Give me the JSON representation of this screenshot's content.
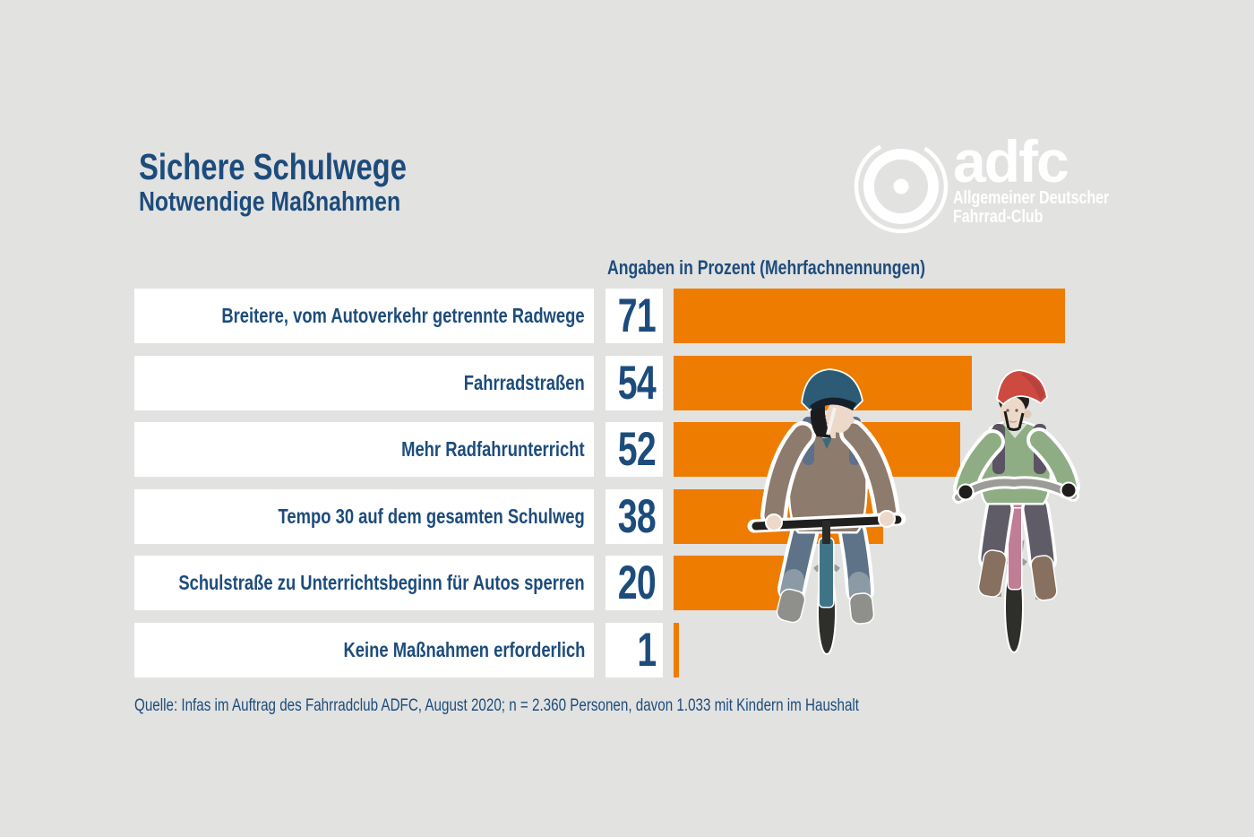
{
  "title": "Sichere Schulwege",
  "subtitle": "Notwendige Maßnahmen",
  "logo": {
    "brand": "adfc",
    "line1": "Allgemeiner Deutscher",
    "line2": "Fahrrad-Club",
    "wheel_icon": "bicycle-wheel"
  },
  "chart_header": "Angaben in Prozent (Mehrfachnennungen)",
  "chart_data": {
    "type": "bar",
    "orientation": "horizontal",
    "unit": "percent",
    "title": "Sichere Schulwege – Notwendige Maßnahmen",
    "xlabel": "Angaben in Prozent (Mehrfachnennungen)",
    "xlim": [
      0,
      100
    ],
    "categories": [
      "Breitere, vom Autoverkehr getrennte Radwege",
      "Fahrradstraßen",
      "Mehr Radfahrunterricht",
      "Tempo 30 auf dem gesamten Schulweg",
      "Schulstraße zu Unterrichtsbeginn für Autos sperren",
      "Keine Maßnahmen erforderlich"
    ],
    "values": [
      71,
      54,
      52,
      38,
      20,
      1
    ],
    "bar_color": "#EE7C00",
    "grid": false,
    "legend": false
  },
  "source": "Quelle: Infas im Auftrag des Fahrradclub ADFC, August 2020; n = 2.360 Personen, davon 1.033 mit Kindern im Haushalt",
  "colors": {
    "background": "#E2E2E1",
    "accent_orange": "#EE7C00",
    "text_blue": "#1D4C7C",
    "box_white": "#FFFFFF",
    "logo_white": "#FFFFFF"
  },
  "illustration": {
    "name": "two-children-riding-bikes",
    "left_child": {
      "helmet": "#2D5A74",
      "sweater": "#8D7B6E",
      "pants": "#5E7388",
      "bike": "#3F7487"
    },
    "right_child": {
      "helmet": "#CD4A41",
      "sweater": "#8FAD84",
      "pants": "#5F5B67",
      "bike": "#BF7E95"
    }
  }
}
